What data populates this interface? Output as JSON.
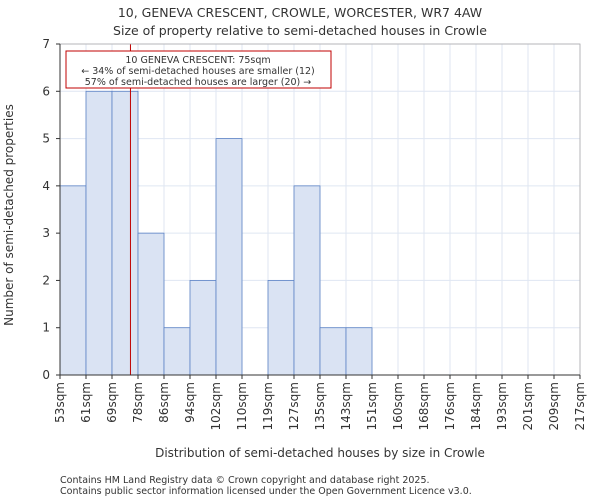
{
  "chart_data": {
    "type": "bar",
    "title_line1": "10, GENEVA CRESCENT, CROWLE, WORCESTER, WR7 4AW",
    "title_line2": "Size of property relative to semi-detached houses in Crowle",
    "xlabel": "Distribution of semi-detached houses by size in Crowle",
    "ylabel": "Number of semi-detached properties",
    "x_ticks": [
      "53sqm",
      "61sqm",
      "69sqm",
      "78sqm",
      "86sqm",
      "94sqm",
      "102sqm",
      "110sqm",
      "119sqm",
      "127sqm",
      "135sqm",
      "143sqm",
      "151sqm",
      "160sqm",
      "168sqm",
      "176sqm",
      "184sqm",
      "193sqm",
      "201sqm",
      "209sqm",
      "217sqm"
    ],
    "values": [
      4,
      6,
      6,
      3,
      1,
      2,
      5,
      0,
      2,
      4,
      1,
      1,
      0,
      0,
      0,
      0,
      0,
      0,
      0,
      0
    ],
    "ylim": [
      0,
      7
    ],
    "y_ticks": [
      0,
      1,
      2,
      3,
      4,
      5,
      6,
      7
    ],
    "grid": true,
    "property_marker": {
      "value": 75,
      "unit": "sqm",
      "bin_position": 2.71
    },
    "annotation": {
      "line1": "10 GENEVA CRESCENT: 75sqm",
      "line2": "← 34% of semi-detached houses are smaller (12)",
      "line3": "57% of semi-detached houses are larger (20) →"
    },
    "colors": {
      "bar_fill": "#dae3f3",
      "bar_stroke": "#5b82c5",
      "grid": "#dfe6f2",
      "marker": "#c00000",
      "annotation_border": "#c00000"
    }
  },
  "footer": {
    "line1": "Contains HM Land Registry data © Crown copyright and database right 2025.",
    "line2": "Contains public sector information licensed under the Open Government Licence v3.0."
  }
}
